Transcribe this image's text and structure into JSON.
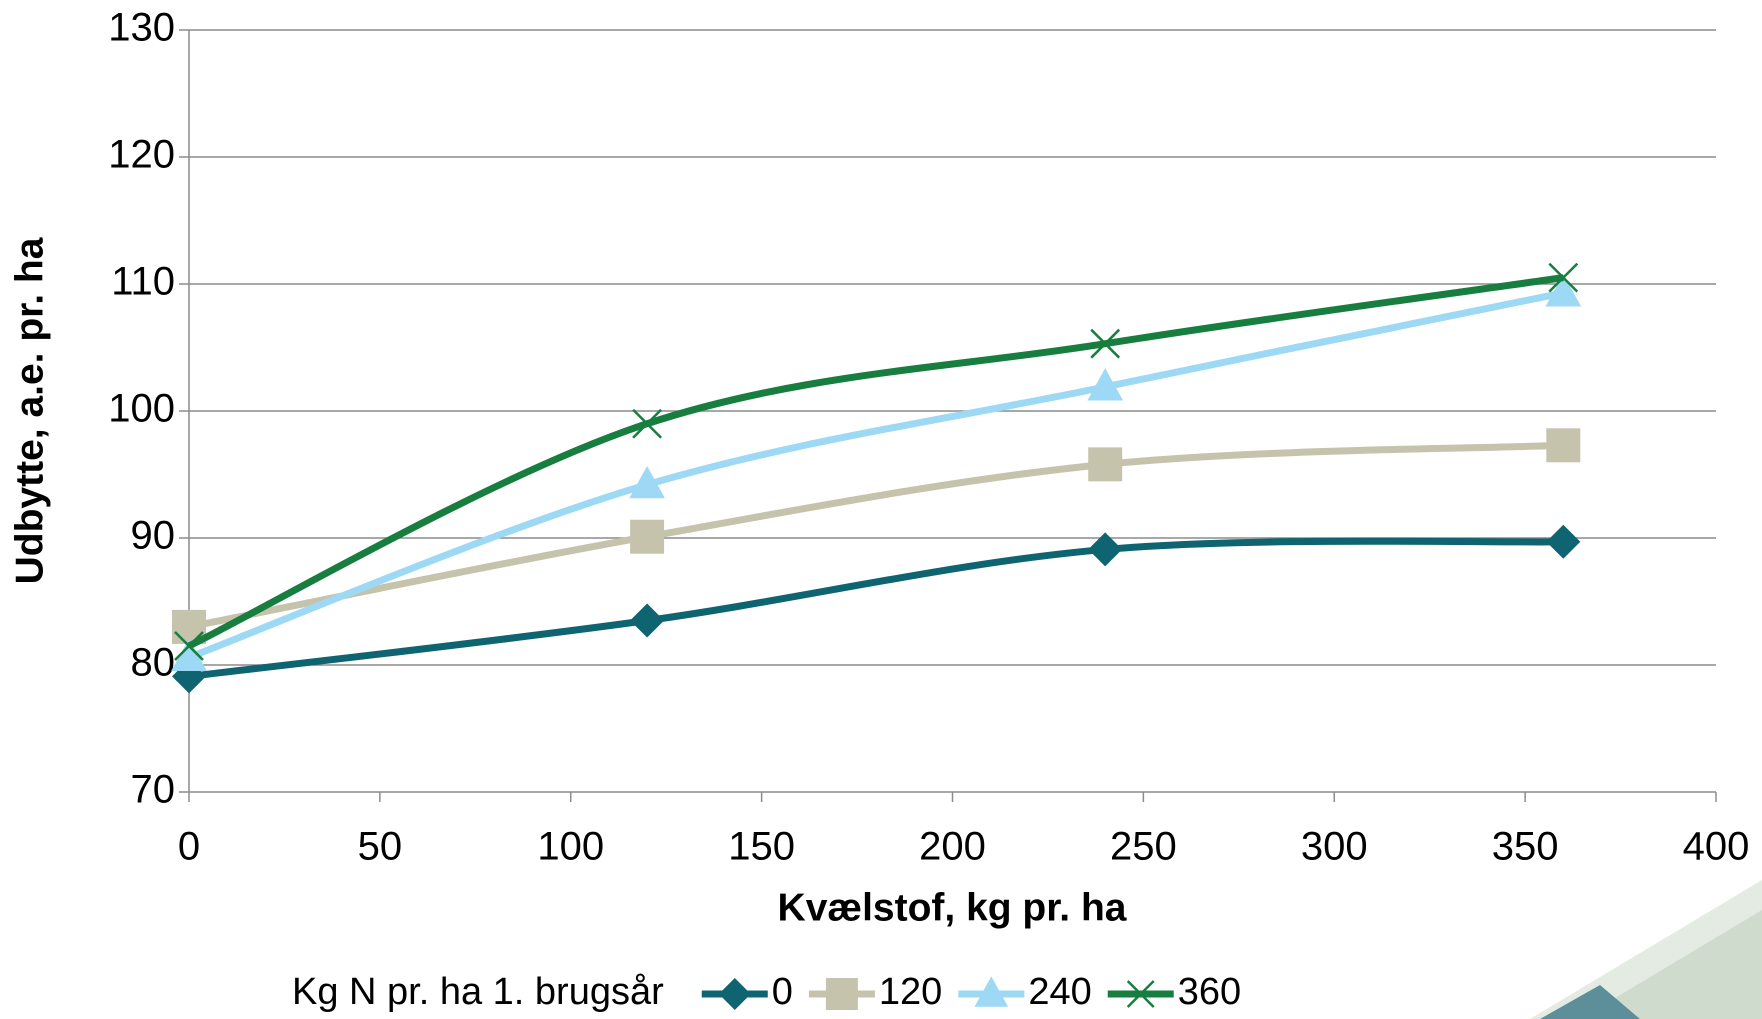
{
  "chart_data": {
    "type": "line",
    "xlabel": "Kvælstof, kg pr. ha",
    "ylabel": "Udbytte, a.e. pr. ha",
    "legend_title": "Kg N pr. ha 1. brugsår",
    "legend": "bottom",
    "grid": true,
    "smooth": true,
    "x": [
      0,
      120,
      240,
      360
    ],
    "xlim": [
      0,
      400
    ],
    "xticks": [
      0,
      50,
      100,
      150,
      200,
      250,
      300,
      350,
      400
    ],
    "ylim": [
      70,
      130
    ],
    "yticks": [
      70,
      80,
      90,
      100,
      110,
      120,
      130
    ],
    "series": [
      {
        "name": "0",
        "color": "#0e6571",
        "marker": "diamond",
        "values": [
          79.1,
          83.5,
          89.1,
          89.7
        ]
      },
      {
        "name": "120",
        "color": "#c6c3ad",
        "marker": "square",
        "values": [
          83.0,
          90.1,
          95.8,
          97.3
        ]
      },
      {
        "name": "240",
        "color": "#9dd9f5",
        "marker": "triangle",
        "values": [
          80.6,
          94.2,
          101.9,
          109.3
        ]
      },
      {
        "name": "360",
        "color": "#177e3f",
        "marker": "x",
        "values": [
          81.5,
          99.0,
          105.3,
          110.5
        ]
      }
    ]
  }
}
